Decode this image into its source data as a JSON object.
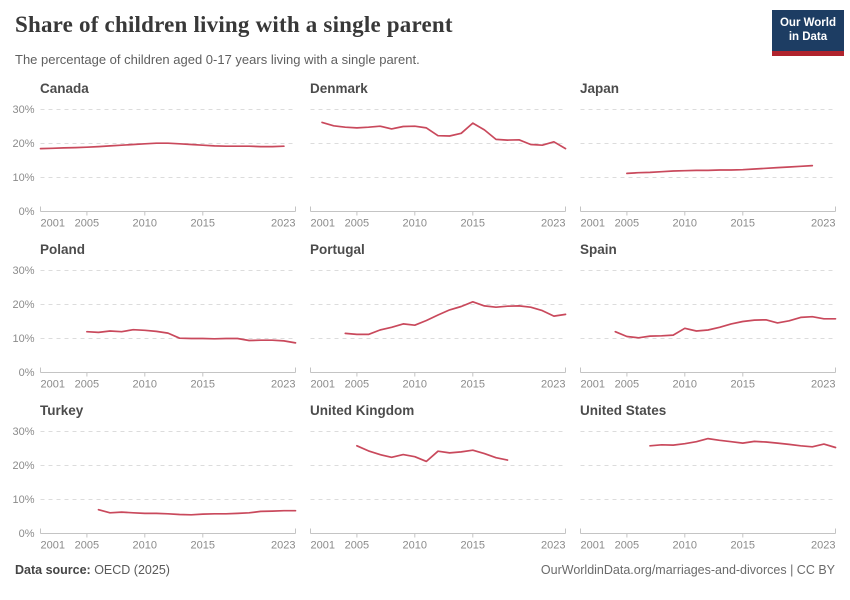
{
  "header": {
    "title": "Share of children living with a single parent",
    "subtitle": "The percentage of children aged 0-17 years living with a single parent."
  },
  "logo": {
    "line1": "Our World",
    "line2": "in Data"
  },
  "footer": {
    "source_label": "Data source:",
    "source_value": " OECD (2025)",
    "citation": "OurWorldinData.org/marriages-and-divorces | CC BY"
  },
  "colors": {
    "line": "#c9495c",
    "logo_bg": "#1d3d63",
    "logo_stripe": "#b0232d",
    "grid": "#dcdcdc",
    "axis": "#c4c4c4",
    "tick_label": "#8b8b8b"
  },
  "chart_data": [
    {
      "type": "line",
      "title": "Canada",
      "start_year": 2001,
      "values": [
        18.5,
        18.6,
        18.7,
        18.8,
        18.9,
        19.1,
        19.3,
        19.5,
        19.7,
        19.9,
        20.1,
        20.1,
        19.9,
        19.7,
        19.5,
        19.3,
        19.2,
        19.2,
        19.2,
        19.1,
        19.1,
        19.2
      ],
      "xlim": [
        2001,
        2023
      ],
      "ylim": [
        0,
        30
      ],
      "xticks": [
        2001,
        2005,
        2010,
        2015,
        2023
      ],
      "yticks": [
        0,
        10,
        20,
        30
      ],
      "unit": "%",
      "show_y_labels": true
    },
    {
      "type": "line",
      "title": "Denmark",
      "start_year": 2002,
      "values": [
        26.2,
        25.2,
        24.8,
        24.6,
        24.8,
        25.1,
        24.3,
        25.0,
        25.1,
        24.6,
        22.3,
        22.2,
        23.0,
        26.0,
        24.0,
        21.2,
        21.0,
        21.1,
        19.7,
        19.5,
        20.5,
        18.5
      ],
      "xlim": [
        2001,
        2023
      ],
      "ylim": [
        0,
        30
      ],
      "xticks": [
        2001,
        2005,
        2010,
        2015,
        2023
      ],
      "yticks": [
        0,
        10,
        20,
        30
      ],
      "unit": "%",
      "show_y_labels": false
    },
    {
      "type": "line",
      "title": "Japan",
      "start_year": 2005,
      "values": [
        11.2,
        11.4,
        11.5,
        11.7,
        11.9,
        12.0,
        12.1,
        12.1,
        12.2,
        12.2,
        12.3,
        12.5,
        12.7,
        12.9,
        13.1,
        13.3,
        13.5
      ],
      "xlim": [
        2001,
        2023
      ],
      "ylim": [
        0,
        30
      ],
      "xticks": [
        2001,
        2005,
        2010,
        2015,
        2023
      ],
      "yticks": [
        0,
        10,
        20,
        30
      ],
      "unit": "%",
      "show_y_labels": false
    },
    {
      "type": "line",
      "title": "Poland",
      "start_year": 2005,
      "values": [
        12.0,
        11.8,
        12.2,
        12.0,
        12.6,
        12.4,
        12.1,
        11.6,
        10.1,
        10.0,
        10.0,
        9.9,
        10.0,
        10.0,
        9.4,
        9.5,
        9.5,
        9.3,
        8.7
      ],
      "xlim": [
        2001,
        2023
      ],
      "ylim": [
        0,
        30
      ],
      "xticks": [
        2001,
        2005,
        2010,
        2015,
        2023
      ],
      "yticks": [
        0,
        10,
        20,
        30
      ],
      "unit": "%",
      "show_y_labels": true
    },
    {
      "type": "line",
      "title": "Portugal",
      "start_year": 2004,
      "values": [
        11.5,
        11.2,
        11.2,
        12.5,
        13.3,
        14.3,
        13.9,
        15.3,
        16.9,
        18.4,
        19.4,
        20.8,
        19.6,
        19.2,
        19.5,
        19.6,
        19.2,
        18.2,
        16.6,
        17.1
      ],
      "xlim": [
        2001,
        2023
      ],
      "ylim": [
        0,
        30
      ],
      "xticks": [
        2001,
        2005,
        2010,
        2015,
        2023
      ],
      "yticks": [
        0,
        10,
        20,
        30
      ],
      "unit": "%",
      "show_y_labels": false
    },
    {
      "type": "line",
      "title": "Spain",
      "start_year": 2004,
      "values": [
        12.0,
        10.6,
        10.2,
        10.7,
        10.8,
        11.0,
        13.0,
        12.2,
        12.5,
        13.3,
        14.3,
        15.0,
        15.4,
        15.5,
        14.6,
        15.2,
        16.2,
        16.4,
        15.8,
        15.8
      ],
      "xlim": [
        2001,
        2023
      ],
      "ylim": [
        0,
        30
      ],
      "xticks": [
        2001,
        2005,
        2010,
        2015,
        2023
      ],
      "yticks": [
        0,
        10,
        20,
        30
      ],
      "unit": "%",
      "show_y_labels": false
    },
    {
      "type": "line",
      "title": "Turkey",
      "start_year": 2006,
      "values": [
        7.0,
        6.1,
        6.3,
        6.1,
        5.9,
        5.9,
        5.8,
        5.6,
        5.5,
        5.7,
        5.8,
        5.8,
        5.9,
        6.1,
        6.5,
        6.6,
        6.7,
        6.7
      ],
      "xlim": [
        2001,
        2023
      ],
      "ylim": [
        0,
        30
      ],
      "xticks": [
        2001,
        2005,
        2010,
        2015,
        2023
      ],
      "yticks": [
        0,
        10,
        20,
        30
      ],
      "unit": "%",
      "show_y_labels": true
    },
    {
      "type": "line",
      "title": "United Kingdom",
      "start_year": 2005,
      "values": [
        25.8,
        24.3,
        23.2,
        22.4,
        23.2,
        22.6,
        21.2,
        24.2,
        23.7,
        24.0,
        24.5,
        23.5,
        22.3,
        21.6
      ],
      "xlim": [
        2001,
        2023
      ],
      "ylim": [
        0,
        30
      ],
      "xticks": [
        2001,
        2005,
        2010,
        2015,
        2023
      ],
      "yticks": [
        0,
        10,
        20,
        30
      ],
      "unit": "%",
      "show_y_labels": false
    },
    {
      "type": "line",
      "title": "United States",
      "start_year": 2007,
      "values": [
        25.8,
        26.1,
        26.0,
        26.4,
        27.0,
        27.9,
        27.4,
        27.0,
        26.6,
        27.1,
        26.9,
        26.6,
        26.2,
        25.8,
        25.5,
        26.3,
        25.3
      ],
      "xlim": [
        2001,
        2023
      ],
      "ylim": [
        0,
        30
      ],
      "xticks": [
        2001,
        2005,
        2010,
        2015,
        2023
      ],
      "yticks": [
        0,
        10,
        20,
        30
      ],
      "unit": "%",
      "show_y_labels": false
    }
  ]
}
